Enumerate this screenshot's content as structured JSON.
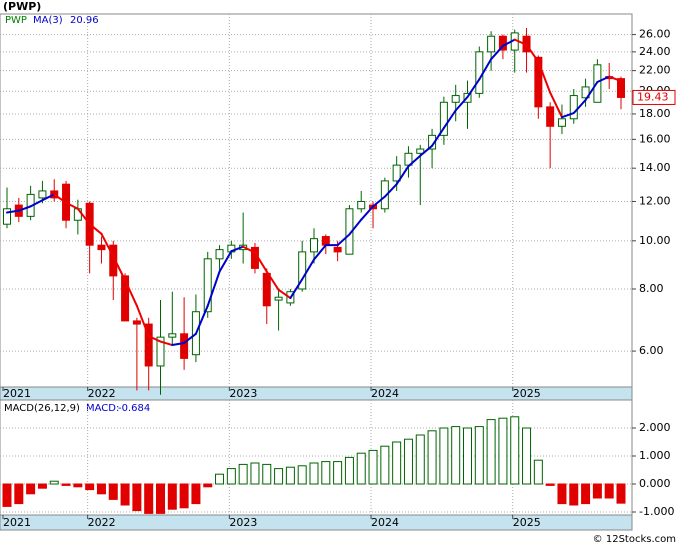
{
  "chart_data": [
    {
      "type": "candlestick",
      "title": "(PWP)",
      "log": true,
      "grid": true,
      "categories": [
        "2021",
        null,
        null,
        null,
        null,
        null,
        null,
        "2022",
        null,
        null,
        null,
        null,
        null,
        null,
        null,
        null,
        null,
        null,
        null,
        "2023",
        null,
        null,
        null,
        null,
        null,
        null,
        null,
        null,
        null,
        null,
        null,
        "2024",
        null,
        null,
        null,
        null,
        null,
        null,
        null,
        null,
        null,
        null,
        null,
        "2025",
        null,
        null,
        null,
        null,
        null,
        null,
        null,
        null,
        null
      ],
      "ylim": [
        5.08,
        28.6
      ],
      "yticks": [
        {
          "value": 6,
          "label": "6.00"
        },
        {
          "value": 8,
          "label": "8.00"
        },
        {
          "value": 10,
          "label": "10.00"
        },
        {
          "value": 12,
          "label": "12.00"
        },
        {
          "value": 14,
          "label": "14.00"
        },
        {
          "value": 16,
          "label": "16.00"
        },
        {
          "value": 18,
          "label": "18.00"
        },
        {
          "value": 20,
          "label": "20.00"
        },
        {
          "value": 22,
          "label": "22.00"
        },
        {
          "value": 24,
          "label": "24.00"
        },
        {
          "value": 26,
          "label": "26.00"
        }
      ],
      "up_color": "#006400",
      "down_color": "#e00000",
      "series": [
        {
          "name": "PWP",
          "color": "#008000",
          "open": [
            10.8,
            11.8,
            11.2,
            12.2,
            12.6,
            13.0,
            11.0,
            11.9,
            9.8,
            9.8,
            8.5,
            6.9,
            6.8,
            5.6,
            6.4,
            6.5,
            5.9,
            7.2,
            9.2,
            9.5,
            9.6,
            9.7,
            8.6,
            7.6,
            7.5,
            8.0,
            9.5,
            10.2,
            9.7,
            9.4,
            11.6,
            11.8,
            11.6,
            13.2,
            14.2,
            15.0,
            15.3,
            16.3,
            19.0,
            19.0,
            19.8,
            24.0,
            25.8,
            24.2,
            25.8,
            23.4,
            18.6,
            17.0,
            17.6,
            19.4,
            19.0,
            21.4,
            21.2
          ],
          "high": [
            12.8,
            12.2,
            12.9,
            13.2,
            13.3,
            13.2,
            12.1,
            12.0,
            10.2,
            10.0,
            8.6,
            7.0,
            7.0,
            7.6,
            7.9,
            7.7,
            7.8,
            9.5,
            9.8,
            10.0,
            11.4,
            9.9,
            8.8,
            8.0,
            8.0,
            10.0,
            10.6,
            10.3,
            10.0,
            11.8,
            12.6,
            12.0,
            13.4,
            14.8,
            15.5,
            15.6,
            16.8,
            19.5,
            20.6,
            21.0,
            24.6,
            26.4,
            26.0,
            26.6,
            26.8,
            23.6,
            19.0,
            18.8,
            20.2,
            21.2,
            23.2,
            22.8,
            21.4
          ],
          "low": [
            10.6,
            10.9,
            11.0,
            11.9,
            12.0,
            10.6,
            10.3,
            8.6,
            9.0,
            7.6,
            6.9,
            5.0,
            5.0,
            4.9,
            6.2,
            5.5,
            5.7,
            7.0,
            8.6,
            9.2,
            9.0,
            8.6,
            6.8,
            6.6,
            7.4,
            7.9,
            9.0,
            9.4,
            9.1,
            9.4,
            11.4,
            10.6,
            11.4,
            12.6,
            13.4,
            11.8,
            14.0,
            15.6,
            17.4,
            16.8,
            19.4,
            22.0,
            23.2,
            21.8,
            21.8,
            17.6,
            14.0,
            16.4,
            17.2,
            18.6,
            19.0,
            20.2,
            18.4
          ],
          "close": [
            11.6,
            11.2,
            12.4,
            12.6,
            12.2,
            11.0,
            11.6,
            9.8,
            9.6,
            8.5,
            6.9,
            6.8,
            5.6,
            6.4,
            6.5,
            5.8,
            7.2,
            9.2,
            9.6,
            9.8,
            9.8,
            8.8,
            7.4,
            7.7,
            7.9,
            9.5,
            10.1,
            9.8,
            9.5,
            11.6,
            12.0,
            11.6,
            13.2,
            14.2,
            15.0,
            15.3,
            16.3,
            19.0,
            19.6,
            19.8,
            24.0,
            25.8,
            24.2,
            26.2,
            24.0,
            18.6,
            17.0,
            17.6,
            19.6,
            20.4,
            22.6,
            21.2,
            19.43
          ]
        },
        {
          "name": "MA(3)",
          "color": "#0000cc",
          "down_color": "#ee0000",
          "values": [
            11.4,
            11.5,
            11.73,
            12.07,
            12.4,
            11.93,
            11.6,
            10.8,
            10.33,
            9.3,
            8.33,
            7.4,
            6.43,
            6.27,
            6.17,
            6.23,
            6.5,
            7.4,
            8.67,
            9.53,
            9.73,
            9.47,
            8.67,
            7.97,
            7.67,
            8.37,
            9.17,
            9.8,
            9.8,
            10.3,
            11.03,
            11.73,
            12.27,
            13.0,
            14.13,
            14.83,
            15.53,
            16.87,
            18.3,
            19.47,
            21.13,
            23.2,
            24.67,
            25.4,
            24.8,
            22.93,
            19.87,
            17.73,
            18.07,
            19.2,
            20.87,
            21.4,
            20.96
          ]
        }
      ]
    },
    {
      "type": "bar",
      "title": "MACD(26,12,9)",
      "grid": true,
      "categories": [
        "2021",
        null,
        null,
        null,
        null,
        null,
        null,
        "2022",
        null,
        null,
        null,
        null,
        null,
        null,
        null,
        null,
        null,
        null,
        null,
        "2023",
        null,
        null,
        null,
        null,
        null,
        null,
        null,
        null,
        null,
        null,
        null,
        "2024",
        null,
        null,
        null,
        null,
        null,
        null,
        null,
        null,
        null,
        null,
        null,
        "2025",
        null,
        null,
        null,
        null,
        null,
        null,
        null,
        null,
        null
      ],
      "ylim": [
        -1.107,
        3.0
      ],
      "yticks": [
        {
          "value": 2,
          "label": "2.000"
        },
        {
          "value": 1,
          "label": "1.000"
        },
        {
          "value": 0,
          "label": "0.000"
        },
        {
          "value": -1,
          "label": "-1.000"
        }
      ],
      "up_color": "#006400",
      "down_color": "#e00000",
      "series": [
        {
          "name": "MACD:",
          "color": "#0000cc",
          "values": [
            -0.8,
            -0.7,
            -0.35,
            -0.15,
            0.1,
            -0.05,
            -0.1,
            -0.2,
            -0.35,
            -0.55,
            -0.75,
            -0.95,
            -1.05,
            -1.05,
            -0.9,
            -0.85,
            -0.7,
            -0.1,
            0.35,
            0.55,
            0.7,
            0.75,
            0.7,
            0.55,
            0.6,
            0.65,
            0.75,
            0.8,
            0.8,
            0.95,
            1.1,
            1.2,
            1.35,
            1.5,
            1.6,
            1.75,
            1.9,
            2.0,
            2.05,
            2.0,
            2.05,
            2.3,
            2.35,
            2.4,
            2.0,
            0.85,
            -0.05,
            -0.7,
            -0.75,
            -0.7,
            -0.5,
            -0.5,
            -0.684
          ]
        }
      ]
    }
  ],
  "footer": "© 12Stocks.com"
}
